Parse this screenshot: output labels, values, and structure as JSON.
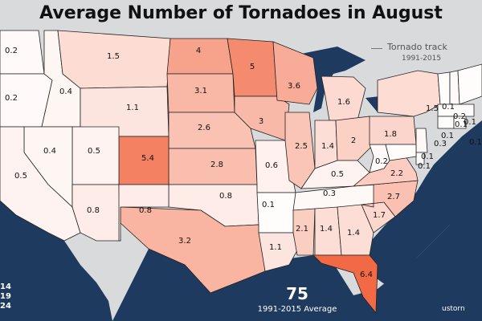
{
  "title": "Average Number of Tornadoes in August",
  "legend": {
    "label": "Tornado track",
    "years": "1991-2015"
  },
  "summary": {
    "value": "75",
    "label": "1991-2015 Average"
  },
  "side_values": [
    "14",
    "19",
    "24"
  ],
  "credit": "ustorn",
  "colors": {
    "ocean": "#1e3a5f",
    "land": "#d8dadc",
    "low": "#ffffff",
    "high": "#f26a45",
    "border": "#222222"
  },
  "states": [
    {
      "id": "WA",
      "value": "0.2"
    },
    {
      "id": "OR",
      "value": "0.2"
    },
    {
      "id": "ID",
      "value": "0.4"
    },
    {
      "id": "MT",
      "value": "1.5"
    },
    {
      "id": "WY",
      "value": "1.1"
    },
    {
      "id": "ND",
      "value": "4"
    },
    {
      "id": "SD",
      "value": "3.1"
    },
    {
      "id": "NE",
      "value": "2.6"
    },
    {
      "id": "KS",
      "value": "2.8"
    },
    {
      "id": "OK",
      "value": "0.8"
    },
    {
      "id": "TX",
      "value": "3.2"
    },
    {
      "id": "CO",
      "value": "5.4"
    },
    {
      "id": "UT",
      "value": "0.5"
    },
    {
      "id": "NV",
      "value": "0.4"
    },
    {
      "id": "CA",
      "value": "0.5"
    },
    {
      "id": "AZ",
      "value": "0.8"
    },
    {
      "id": "NM",
      "value": "0.8"
    },
    {
      "id": "MN",
      "value": "5"
    },
    {
      "id": "IA",
      "value": "3"
    },
    {
      "id": "MO",
      "value": "0.6"
    },
    {
      "id": "AR",
      "value": "0.1"
    },
    {
      "id": "LA",
      "value": "1.1"
    },
    {
      "id": "WI",
      "value": "3.6"
    },
    {
      "id": "IL",
      "value": "2.5"
    },
    {
      "id": "MI",
      "value": "1.6"
    },
    {
      "id": "IN",
      "value": "1.4"
    },
    {
      "id": "OH",
      "value": "2"
    },
    {
      "id": "KY",
      "value": "0.5"
    },
    {
      "id": "TN",
      "value": "0.3"
    },
    {
      "id": "MS",
      "value": "2.1"
    },
    {
      "id": "AL",
      "value": "1.4"
    },
    {
      "id": "GA",
      "value": "1.4"
    },
    {
      "id": "FL",
      "value": "6.4"
    },
    {
      "id": "SC",
      "value": "1.7"
    },
    {
      "id": "NC",
      "value": "2.7"
    },
    {
      "id": "VA",
      "value": "2.2"
    },
    {
      "id": "WV",
      "value": "0.2"
    },
    {
      "id": "PA",
      "value": "1.8"
    },
    {
      "id": "NY",
      "value": "1.5"
    },
    {
      "id": "VT",
      "value": "0.1"
    },
    {
      "id": "NH",
      "value": "0.2"
    },
    {
      "id": "ME",
      "value": "0.1"
    },
    {
      "id": "MA",
      "value": "0.1"
    },
    {
      "id": "CT",
      "value": "0.1"
    },
    {
      "id": "RI",
      "value": "0.1"
    },
    {
      "id": "NJ",
      "value": "0.3"
    },
    {
      "id": "DE",
      "value": "0.1"
    },
    {
      "id": "MD",
      "value": "0.1"
    }
  ]
}
